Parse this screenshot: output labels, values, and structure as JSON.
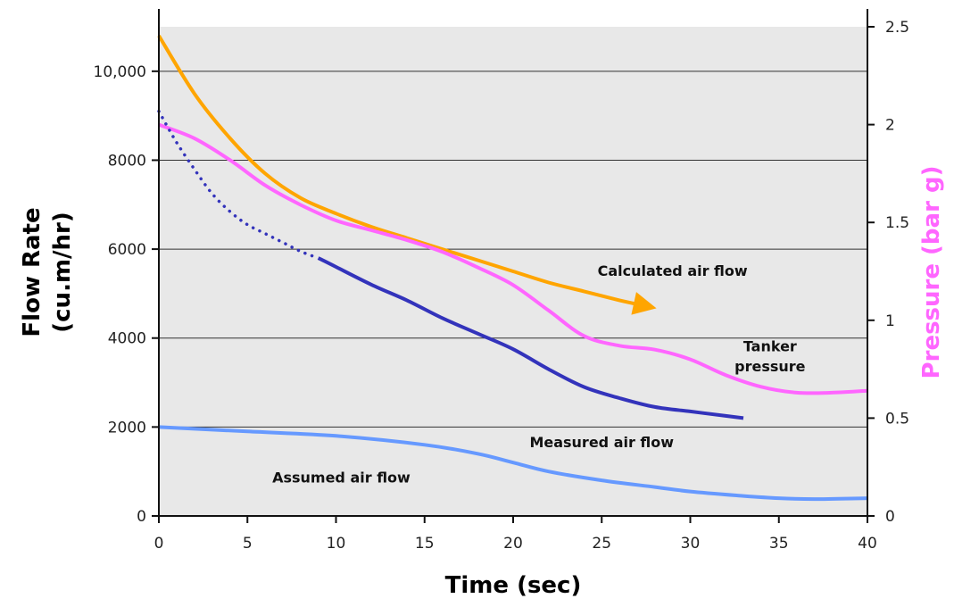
{
  "chart_data": {
    "type": "line",
    "xlabel": "Time (sec)",
    "ylabel_line1": "Flow Rate",
    "ylabel_line2": "(cu.m/hr)",
    "y2label": "Pressure (bar g)",
    "xlim": [
      0,
      40
    ],
    "ylim": [
      0,
      11000
    ],
    "y2lim": [
      0,
      2.5
    ],
    "x_ticks": [
      0,
      5,
      10,
      15,
      20,
      25,
      30,
      35,
      40
    ],
    "y_ticks": [
      0,
      2000,
      4000,
      6000,
      8000,
      10000
    ],
    "y_tick_labels": [
      "0",
      "2000",
      "4000",
      "6000",
      "8000",
      "10,000"
    ],
    "y2_ticks": [
      0,
      0.5,
      1,
      1.5,
      2,
      2.5
    ],
    "y2_tick_labels": [
      "0",
      "0.5",
      "1",
      "1.5",
      "2",
      "2.5"
    ],
    "grid": "horizontal",
    "colors": {
      "plot_background": "#e8e8e8",
      "calculated": "#ffa500",
      "pressure": "#ff66ff",
      "measured": "#3333bb",
      "assumed": "#6699ff",
      "y2label": "#ff66ff"
    },
    "series": [
      {
        "name": "Calculated air flow",
        "axis": "left",
        "x": [
          0,
          2,
          4,
          6,
          8,
          10,
          12,
          14,
          16,
          18,
          20,
          22,
          24,
          26,
          27.5
        ],
        "y": [
          10800,
          9500,
          8500,
          7700,
          7150,
          6800,
          6500,
          6250,
          6000,
          5750,
          5500,
          5250,
          5050,
          4850,
          4720
        ],
        "arrow_end": true
      },
      {
        "name": "Tanker pressure",
        "axis": "right",
        "x": [
          0,
          2,
          4,
          6,
          8,
          10,
          12,
          14,
          16,
          18,
          20,
          22,
          24,
          26,
          28,
          30,
          32,
          34,
          36,
          38,
          40
        ],
        "y": [
          2.0,
          1.93,
          1.82,
          1.69,
          1.59,
          1.51,
          1.46,
          1.41,
          1.35,
          1.27,
          1.18,
          1.05,
          0.92,
          0.87,
          0.85,
          0.8,
          0.72,
          0.66,
          0.63,
          0.63,
          0.64
        ]
      },
      {
        "name": "Measured air flow",
        "axis": "left",
        "x": [
          0,
          1,
          2,
          3,
          4,
          5,
          6,
          7,
          8,
          9
        ],
        "y": [
          9100,
          8400,
          7800,
          7250,
          6850,
          6550,
          6350,
          6150,
          5950,
          5800
        ],
        "dotted": true
      },
      {
        "name": "Measured air flow",
        "axis": "left",
        "x": [
          9,
          10,
          12,
          14,
          16,
          18,
          20,
          22,
          24,
          26,
          28,
          30,
          32,
          33
        ],
        "y": [
          5800,
          5600,
          5200,
          4850,
          4450,
          4100,
          3750,
          3300,
          2900,
          2650,
          2450,
          2350,
          2250,
          2200
        ]
      },
      {
        "name": "Assumed air flow",
        "axis": "left",
        "x": [
          0,
          5,
          10,
          15,
          18,
          20,
          22,
          25,
          28,
          30,
          33,
          35,
          37,
          40
        ],
        "y": [
          2000,
          1900,
          1800,
          1600,
          1400,
          1200,
          1000,
          800,
          650,
          550,
          450,
          400,
          380,
          400
        ]
      }
    ],
    "annotations": [
      {
        "text": "Calculated air flow",
        "at": [
          29,
          5400
        ]
      },
      {
        "text": "Tanker",
        "at": [
          34.5,
          3700
        ]
      },
      {
        "text": "pressure",
        "at": [
          34.5,
          3250
        ]
      },
      {
        "text": "Measured air flow",
        "at": [
          25,
          1550
        ]
      },
      {
        "text": "Assumed air flow",
        "at": [
          10.3,
          750
        ]
      }
    ]
  }
}
